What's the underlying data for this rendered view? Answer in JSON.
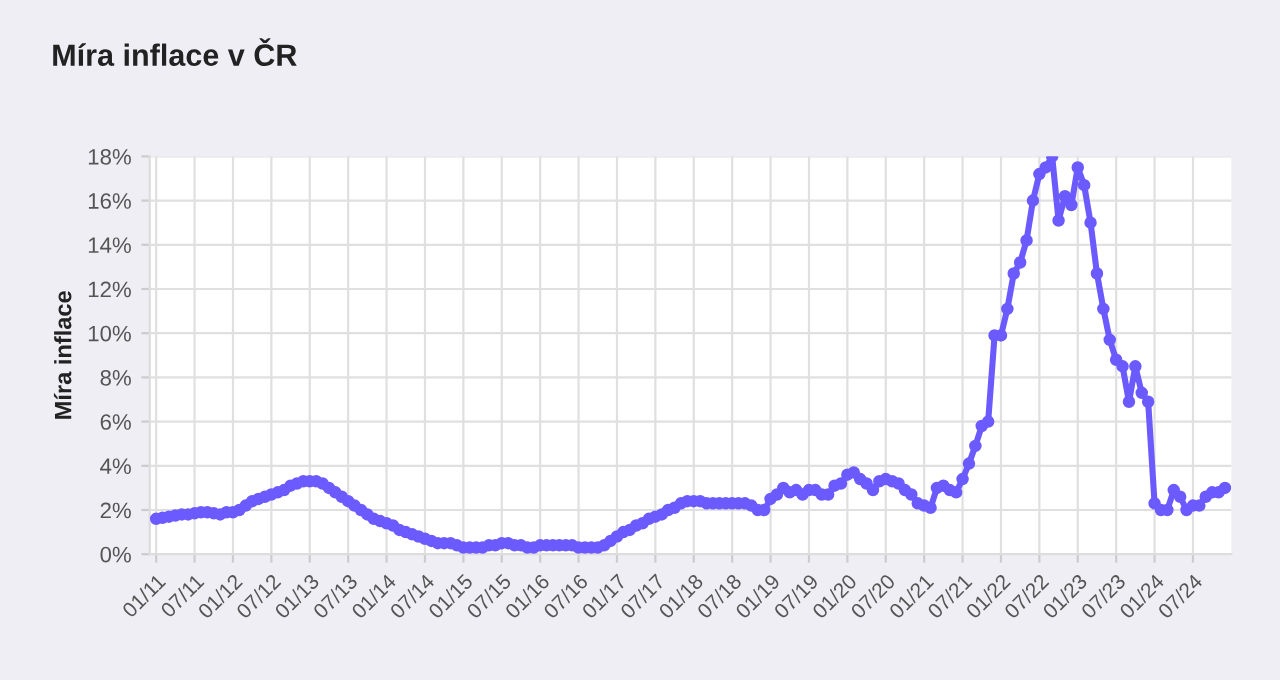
{
  "chart_data": {
    "type": "line",
    "title": "Míra inflace v ČR",
    "ylabel": "Míra inflace",
    "categories": [
      "01/11",
      null,
      null,
      null,
      null,
      null,
      "07/11",
      null,
      null,
      null,
      null,
      null,
      "01/12",
      null,
      null,
      null,
      null,
      null,
      "07/12",
      null,
      null,
      null,
      null,
      null,
      "01/13",
      null,
      null,
      null,
      null,
      null,
      "07/13",
      null,
      null,
      null,
      null,
      null,
      "01/14",
      null,
      null,
      null,
      null,
      null,
      "07/14",
      null,
      null,
      null,
      null,
      null,
      "01/15",
      null,
      null,
      null,
      null,
      null,
      "07/15",
      null,
      null,
      null,
      null,
      null,
      "01/16",
      null,
      null,
      null,
      null,
      null,
      "07/16",
      null,
      null,
      null,
      null,
      null,
      "01/17",
      null,
      null,
      null,
      null,
      null,
      "07/17",
      null,
      null,
      null,
      null,
      null,
      "01/18",
      null,
      null,
      null,
      null,
      null,
      "07/18",
      null,
      null,
      null,
      null,
      null,
      "01/19",
      null,
      null,
      null,
      null,
      null,
      "07/19",
      null,
      null,
      null,
      null,
      null,
      "01/20",
      null,
      null,
      null,
      null,
      null,
      "07/20",
      null,
      null,
      null,
      null,
      null,
      "01/21",
      null,
      null,
      null,
      null,
      null,
      "07/21",
      null,
      null,
      null,
      null,
      null,
      "01/22",
      null,
      null,
      null,
      null,
      null,
      "07/22",
      null,
      null,
      null,
      null,
      null,
      "01/23",
      null,
      null,
      null,
      null,
      null,
      "07/23",
      null,
      null,
      null,
      null,
      null,
      "01/24",
      null,
      null,
      null,
      null,
      null,
      "07/24",
      null,
      null,
      null,
      null,
      null
    ],
    "series": [
      {
        "color": "#6b5bff",
        "values": [
          1.6,
          1.65,
          1.7,
          1.75,
          1.8,
          1.8,
          1.85,
          1.9,
          1.9,
          1.85,
          1.8,
          1.9,
          1.9,
          2.0,
          2.2,
          2.4,
          2.5,
          2.6,
          2.7,
          2.8,
          2.9,
          3.1,
          3.2,
          3.3,
          3.3,
          3.3,
          3.2,
          3.0,
          2.8,
          2.6,
          2.4,
          2.2,
          2.0,
          1.8,
          1.6,
          1.5,
          1.4,
          1.3,
          1.1,
          1.0,
          0.9,
          0.8,
          0.7,
          0.6,
          0.5,
          0.5,
          0.5,
          0.4,
          0.3,
          0.3,
          0.3,
          0.3,
          0.4,
          0.4,
          0.5,
          0.5,
          0.4,
          0.4,
          0.3,
          0.3,
          0.4,
          0.4,
          0.4,
          0.4,
          0.4,
          0.4,
          0.3,
          0.3,
          0.3,
          0.3,
          0.4,
          0.6,
          0.8,
          1.0,
          1.1,
          1.3,
          1.4,
          1.6,
          1.7,
          1.8,
          2.0,
          2.1,
          2.3,
          2.4,
          2.4,
          2.4,
          2.3,
          2.3,
          2.3,
          2.3,
          2.3,
          2.3,
          2.3,
          2.2,
          2.0,
          2.0,
          2.5,
          2.7,
          3.0,
          2.8,
          2.9,
          2.7,
          2.9,
          2.9,
          2.7,
          2.7,
          3.1,
          3.2,
          3.6,
          3.7,
          3.4,
          3.2,
          2.9,
          3.3,
          3.4,
          3.3,
          3.2,
          2.9,
          2.7,
          2.3,
          2.2,
          2.1,
          3.0,
          3.1,
          2.9,
          2.8,
          3.4,
          4.1,
          4.9,
          5.8,
          6.0,
          9.9,
          9.9,
          11.1,
          12.7,
          13.2,
          14.2,
          16.0,
          17.2,
          17.5,
          18.0,
          15.1,
          16.2,
          15.8,
          17.5,
          16.7,
          15.0,
          12.7,
          11.1,
          9.7,
          8.8,
          8.5,
          6.9,
          8.5,
          7.3,
          6.9,
          2.3,
          2.0,
          2.0,
          2.9,
          2.6,
          2.0,
          2.2,
          2.2,
          2.6,
          2.8,
          2.8,
          3.0
        ]
      }
    ],
    "ylim": [
      0,
      18
    ],
    "yticks": [
      {
        "value": 0,
        "label": "0%"
      },
      {
        "value": 2,
        "label": "2%"
      },
      {
        "value": 4,
        "label": "4%"
      },
      {
        "value": 6,
        "label": "6%"
      },
      {
        "value": 8,
        "label": "8%"
      },
      {
        "value": 10,
        "label": "10%"
      },
      {
        "value": 12,
        "label": "12%"
      },
      {
        "value": 14,
        "label": "14%"
      },
      {
        "value": 16,
        "label": "16%"
      },
      {
        "value": 18,
        "label": "18%"
      }
    ],
    "grid": true,
    "marker": "circle",
    "line_style": "solid"
  }
}
